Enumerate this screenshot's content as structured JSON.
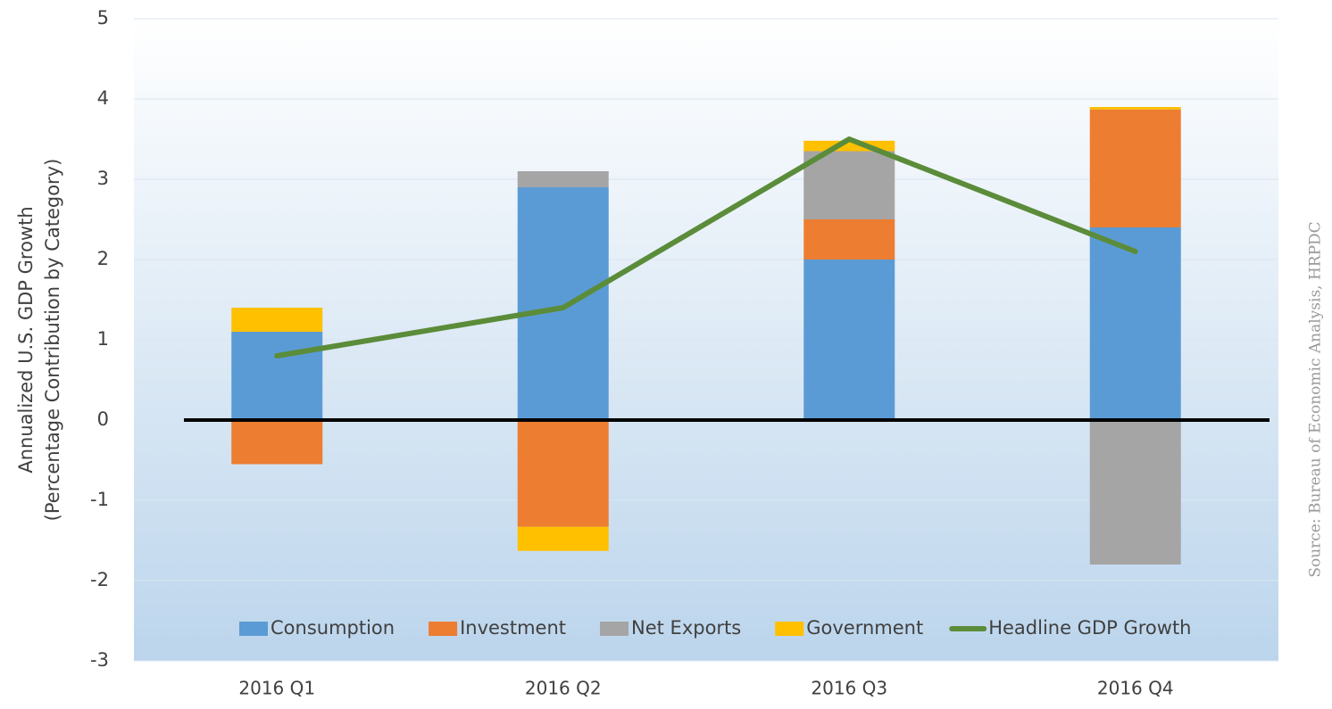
{
  "chart_data": {
    "type": "bar",
    "ylabel": [
      "Annualized U.S. GDP Growth",
      "(Percentage Contribution by Category)"
    ],
    "source": "Source: Bureau of Economic Analysis, HRPDC",
    "categories": [
      "2016 Q1",
      "2016 Q2",
      "2016 Q3",
      "2016 Q4"
    ],
    "series": [
      {
        "name": "Consumption",
        "color": "#5b9bd5",
        "values": [
          1.1,
          2.9,
          2.0,
          2.4
        ]
      },
      {
        "name": "Investment",
        "color": "#ed7d31",
        "values": [
          -0.55,
          -1.33,
          0.5,
          1.47
        ]
      },
      {
        "name": "Net Exports",
        "color": "#a5a5a5",
        "values": [
          0,
          0.2,
          0.85,
          -1.8
        ]
      },
      {
        "name": "Government",
        "color": "#ffc000",
        "values": [
          0.3,
          -0.3,
          0.13,
          0.03
        ]
      },
      {
        "name": "Headline GDP Growth",
        "color": "#5b8c3a",
        "type": "line",
        "values": [
          0.8,
          1.4,
          3.5,
          2.1
        ]
      }
    ],
    "ylim": [
      -3,
      5
    ],
    "yticks": [
      -3,
      -2,
      -1,
      0,
      1,
      2,
      3,
      4,
      5
    ],
    "grid": true,
    "legend": "bottom"
  }
}
